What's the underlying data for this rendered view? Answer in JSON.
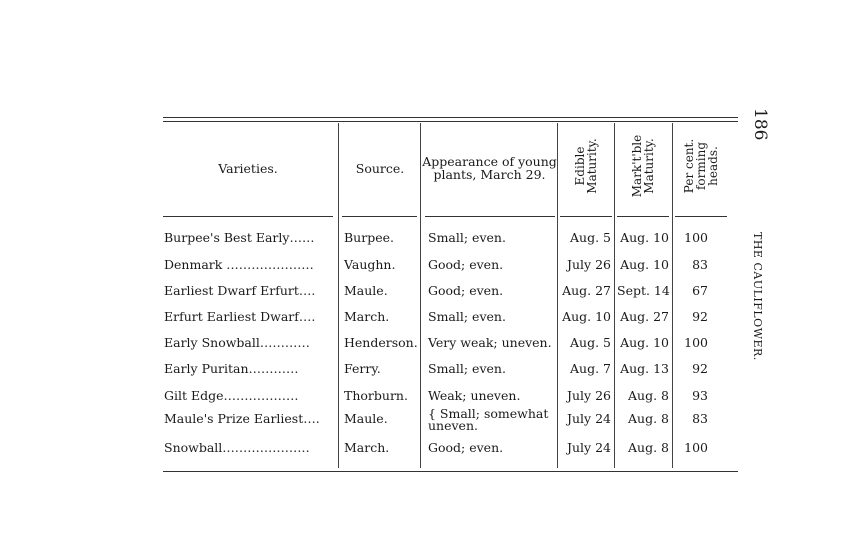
{
  "page_number": "186",
  "running_head": "THE CAULIFLOWER.",
  "table": {
    "headers": {
      "variety": "Varieties.",
      "source": "Source.",
      "appearance": "Appearance of young plants, March 29.",
      "edible": "Edible Maturity.",
      "marketable": "Mark't'ble Maturity.",
      "percent": "Per cent. forming heads."
    },
    "rows": [
      {
        "variety": "Burpee's Best Early……",
        "source": "Burpee.",
        "appearance": "Small; even.",
        "edible": "Aug.  5",
        "marketable": "Aug. 10",
        "percent": "100"
      },
      {
        "variety": "Denmark …………………",
        "source": "Vaughn.",
        "appearance": "Good; even.",
        "edible": "July 26",
        "marketable": "Aug. 10",
        "percent": "83"
      },
      {
        "variety": "Earliest Dwarf Erfurt….",
        "source": "Maule.",
        "appearance": "Good; even.",
        "edible": "Aug. 27",
        "marketable": "Sept. 14",
        "percent": "67"
      },
      {
        "variety": "Erfurt Earliest Dwarf….",
        "source": "March.",
        "appearance": "Small; even.",
        "edible": "Aug. 10",
        "marketable": "Aug. 27",
        "percent": "92"
      },
      {
        "variety": "Early Snowball…………",
        "source": "Henderson.",
        "appearance": "Very weak; uneven.",
        "edible": "Aug.  5",
        "marketable": "Aug. 10",
        "percent": "100"
      },
      {
        "variety": "Early Puritan…………",
        "source": "Ferry.",
        "appearance": "Small; even.",
        "edible": "Aug.  7",
        "marketable": "Aug. 13",
        "percent": "92"
      },
      {
        "variety": "Gilt Edge………………",
        "source": "Thorburn.",
        "appearance": "Weak; uneven.",
        "edible": "July 26",
        "marketable": "Aug.  8",
        "percent": "93"
      },
      {
        "variety": "Maule's Prize Earliest….",
        "source": "Maule.",
        "appearance": "{ Small; somewhat uneven.",
        "edible": "July 24",
        "marketable": "Aug.  8",
        "percent": "83"
      },
      {
        "variety": "Snowball…………………",
        "source": "March.",
        "appearance": "Good; even.",
        "edible": "July 24",
        "marketable": "Aug.  8",
        "percent": "100"
      }
    ]
  }
}
